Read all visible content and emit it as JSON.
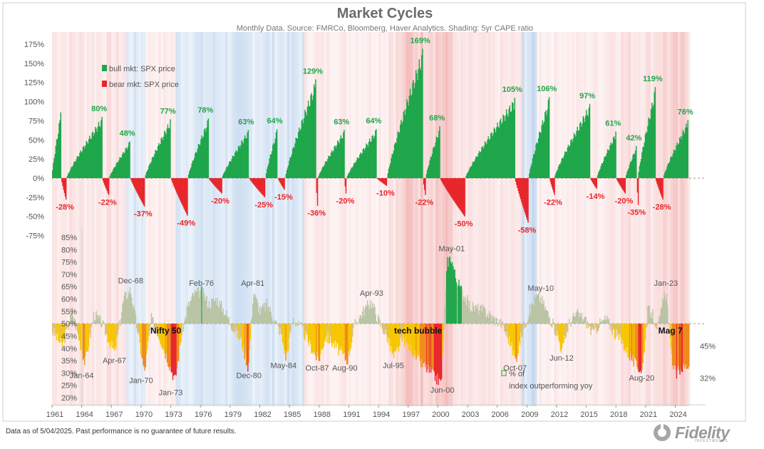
{
  "chart_data": {
    "type": "bar",
    "title": "Market Cycles",
    "subtitle": "Monthly Data.  Source:  FMRCo, Bloomberg, Haver Analytics.  Shading: 5yr CAPE ratio",
    "x_ticks": [
      "1961",
      "1964",
      "1967",
      "1970",
      "1973",
      "1976",
      "1979",
      "1982",
      "1985",
      "1988",
      "1991",
      "1994",
      "1997",
      "2000",
      "2003",
      "2006",
      "2009",
      "2012",
      "2015",
      "2018",
      "2021",
      "2024"
    ],
    "xlim": [
      1961,
      2025.4
    ],
    "top_panel": {
      "y_ticks": [
        "175%",
        "150%",
        "125%",
        "100%",
        "75%",
        "50%",
        "25%",
        "0%",
        "-25%",
        "-50%",
        "-75%"
      ],
      "ylim": [
        -75,
        175
      ],
      "legend": [
        {
          "name": "bull mkt: SPX price",
          "color": "#1fa64a"
        },
        {
          "name": "bear mkt: SPX price",
          "color": "#e8262b"
        }
      ],
      "bull_markets": [
        {
          "start": 1961.0,
          "end": 1961.9,
          "peak": 86,
          "label": ""
        },
        {
          "start": 1962.5,
          "end": 1966.05,
          "peak": 80,
          "label": "80%"
        },
        {
          "start": 1966.8,
          "end": 1968.9,
          "peak": 48,
          "label": "48%"
        },
        {
          "start": 1970.4,
          "end": 1973.0,
          "peak": 77,
          "label": "77%"
        },
        {
          "start": 1974.75,
          "end": 1976.8,
          "peak": 78,
          "label": "78%"
        },
        {
          "start": 1978.2,
          "end": 1980.9,
          "peak": 63,
          "label": "63%"
        },
        {
          "start": 1982.6,
          "end": 1983.8,
          "peak": 64,
          "label": "64%"
        },
        {
          "start": 1984.6,
          "end": 1987.65,
          "peak": 129,
          "label": "129%"
        },
        {
          "start": 1987.9,
          "end": 1990.55,
          "peak": 63,
          "label": "63%"
        },
        {
          "start": 1990.8,
          "end": 1993.8,
          "peak": 64,
          "label": "64%"
        },
        {
          "start": 1994.9,
          "end": 1998.5,
          "peak": 169,
          "label": "169%"
        },
        {
          "start": 1998.8,
          "end": 2000.2,
          "peak": 68,
          "label": "68%"
        },
        {
          "start": 2002.8,
          "end": 2007.8,
          "peak": 105,
          "label": "105%"
        },
        {
          "start": 2009.2,
          "end": 2011.3,
          "peak": 106,
          "label": "106%"
        },
        {
          "start": 2011.8,
          "end": 2015.4,
          "peak": 97,
          "label": "97%"
        },
        {
          "start": 2016.1,
          "end": 2018.0,
          "peak": 61,
          "label": "61%"
        },
        {
          "start": 2019.0,
          "end": 2020.1,
          "peak": 42,
          "label": "42%"
        },
        {
          "start": 2020.25,
          "end": 2022.0,
          "peak": 119,
          "label": "119%"
        },
        {
          "start": 2022.8,
          "end": 2025.3,
          "peak": 76,
          "label": "76%"
        }
      ],
      "bear_markets": [
        {
          "start": 1961.95,
          "end": 1962.45,
          "trough": -28,
          "label": "-28%"
        },
        {
          "start": 1966.1,
          "end": 1966.75,
          "trough": -22,
          "label": "-22%"
        },
        {
          "start": 1968.95,
          "end": 1970.35,
          "trough": -37,
          "label": "-37%"
        },
        {
          "start": 1973.05,
          "end": 1974.7,
          "trough": -49,
          "label": "-49%"
        },
        {
          "start": 1976.85,
          "end": 1978.15,
          "trough": -20,
          "label": "-20%"
        },
        {
          "start": 1980.95,
          "end": 1982.55,
          "trough": -25,
          "label": "-25%"
        },
        {
          "start": 1983.85,
          "end": 1984.55,
          "trough": -15,
          "label": "-15%"
        },
        {
          "start": 1987.7,
          "end": 1987.88,
          "trough": -36,
          "label": "-36%"
        },
        {
          "start": 1990.58,
          "end": 1990.78,
          "trough": -20,
          "label": "-20%"
        },
        {
          "start": 1993.85,
          "end": 1994.85,
          "trough": -10,
          "label": "-10%"
        },
        {
          "start": 1998.52,
          "end": 1998.78,
          "trough": -22,
          "label": "-22%"
        },
        {
          "start": 2000.25,
          "end": 2002.75,
          "trough": -50,
          "label": "-50%"
        },
        {
          "start": 2007.82,
          "end": 2009.15,
          "trough": -58,
          "label": "-58%"
        },
        {
          "start": 2011.32,
          "end": 2011.78,
          "trough": -22,
          "label": "-22%"
        },
        {
          "start": 2015.42,
          "end": 2016.08,
          "trough": -14,
          "label": "-14%"
        },
        {
          "start": 2018.05,
          "end": 2018.95,
          "trough": -20,
          "label": "-20%"
        },
        {
          "start": 2020.12,
          "end": 2020.23,
          "trough": -35,
          "label": "-35%"
        },
        {
          "start": 2022.02,
          "end": 2022.78,
          "trough": -28,
          "label": "-28%"
        }
      ]
    },
    "bottom_panel": {
      "y_ticks": [
        "85%",
        "80%",
        "75%",
        "70%",
        "65%",
        "60%",
        "55%",
        "50%",
        "45%",
        "40%",
        "35%",
        "30%",
        "25%",
        "20%"
      ],
      "ylim": [
        20,
        85
      ],
      "baseline": 50,
      "legend": [
        {
          "name": "% of index outperforming yoy",
          "color": "#2ca02c"
        }
      ],
      "series_points": [
        [
          1961.0,
          47
        ],
        [
          1962.0,
          41
        ],
        [
          1963.0,
          55
        ],
        [
          1964.3,
          34
        ],
        [
          1965.2,
          54
        ],
        [
          1966.0,
          50
        ],
        [
          1967.3,
          38
        ],
        [
          1968.2,
          60
        ],
        [
          1968.9,
          64
        ],
        [
          1969.6,
          47
        ],
        [
          1970.3,
          30
        ],
        [
          1971.0,
          52
        ],
        [
          1971.8,
          45
        ],
        [
          1972.6,
          36
        ],
        [
          1973.4,
          27
        ],
        [
          1974.0,
          44
        ],
        [
          1974.6,
          56
        ],
        [
          1975.3,
          62
        ],
        [
          1976.1,
          63
        ],
        [
          1976.8,
          58
        ],
        [
          1977.6,
          60
        ],
        [
          1978.4,
          55
        ],
        [
          1979.2,
          49
        ],
        [
          1980.1,
          43
        ],
        [
          1980.8,
          32
        ],
        [
          1981.3,
          63
        ],
        [
          1982.0,
          55
        ],
        [
          1982.7,
          58
        ],
        [
          1983.4,
          52
        ],
        [
          1984.1,
          46
        ],
        [
          1984.6,
          36
        ],
        [
          1985.3,
          52
        ],
        [
          1986.2,
          48
        ],
        [
          1987.2,
          40
        ],
        [
          1987.9,
          35
        ],
        [
          1988.6,
          45
        ],
        [
          1989.4,
          42
        ],
        [
          1990.2,
          38
        ],
        [
          1990.8,
          35
        ],
        [
          1991.6,
          50
        ],
        [
          1992.4,
          55
        ],
        [
          1993.2,
          59
        ],
        [
          1994.0,
          51
        ],
        [
          1994.8,
          45
        ],
        [
          1995.5,
          36
        ],
        [
          1996.4,
          44
        ],
        [
          1997.2,
          40
        ],
        [
          1998.0,
          35
        ],
        [
          1998.8,
          32
        ],
        [
          1999.5,
          29
        ],
        [
          2000.3,
          26
        ],
        [
          2000.9,
          75
        ],
        [
          2001.3,
          77
        ],
        [
          2001.8,
          68
        ],
        [
          2002.4,
          63
        ],
        [
          2003.2,
          57
        ],
        [
          2004.0,
          56
        ],
        [
          2004.8,
          55
        ],
        [
          2005.6,
          52
        ],
        [
          2006.4,
          50
        ],
        [
          2007.3,
          42
        ],
        [
          2007.8,
          35
        ],
        [
          2008.5,
          47
        ],
        [
          2009.2,
          55
        ],
        [
          2009.9,
          61
        ],
        [
          2010.4,
          60
        ],
        [
          2011.2,
          53
        ],
        [
          2012.0,
          46
        ],
        [
          2012.5,
          39
        ],
        [
          2013.2,
          50
        ],
        [
          2014.0,
          54
        ],
        [
          2014.8,
          52
        ],
        [
          2015.6,
          46
        ],
        [
          2016.3,
          50
        ],
        [
          2017.0,
          52
        ],
        [
          2017.8,
          46
        ],
        [
          2018.5,
          43
        ],
        [
          2019.2,
          38
        ],
        [
          2020.0,
          33
        ],
        [
          2020.6,
          31
        ],
        [
          2021.2,
          56
        ],
        [
          2021.6,
          54
        ],
        [
          2022.2,
          48
        ],
        [
          2022.9,
          63
        ],
        [
          2023.1,
          61
        ],
        [
          2023.5,
          38
        ],
        [
          2024.0,
          29
        ],
        [
          2024.5,
          32
        ],
        [
          2025.2,
          33
        ]
      ],
      "annotations": [
        {
          "text": "Dec-68",
          "x": 1968.95,
          "y": 64
        },
        {
          "text": "Apr-67",
          "x": 1967.3,
          "y": 38
        },
        {
          "text": "Jan-64",
          "x": 1964.0,
          "y": 32
        },
        {
          "text": "Jan-70",
          "x": 1970.0,
          "y": 30
        },
        {
          "text": "Jan-73",
          "x": 1973.0,
          "y": 25
        },
        {
          "text": "Feb-76",
          "x": 1976.1,
          "y": 63
        },
        {
          "text": "Dec-80",
          "x": 1980.9,
          "y": 32
        },
        {
          "text": "Apr-81",
          "x": 1981.3,
          "y": 63
        },
        {
          "text": "May-84",
          "x": 1984.4,
          "y": 36
        },
        {
          "text": "Oct-87",
          "x": 1987.8,
          "y": 35
        },
        {
          "text": "Aug-90",
          "x": 1990.6,
          "y": 35
        },
        {
          "text": "Apr-93",
          "x": 1993.3,
          "y": 59
        },
        {
          "text": "Jul-95",
          "x": 1995.5,
          "y": 36
        },
        {
          "text": "May-01",
          "x": 2001.4,
          "y": 77
        },
        {
          "text": "Jun-00",
          "x": 2000.45,
          "y": 26
        },
        {
          "text": "Oct-07",
          "x": 2007.8,
          "y": 35
        },
        {
          "text": "May-10",
          "x": 2010.4,
          "y": 61
        },
        {
          "text": "Jun-12",
          "x": 2012.5,
          "y": 39
        },
        {
          "text": "Aug-20",
          "x": 2020.6,
          "y": 31
        },
        {
          "text": "Jan-23",
          "x": 2023.05,
          "y": 63
        }
      ],
      "highlights": [
        {
          "text": "Nifty 50",
          "x": 1972.5,
          "y": 46
        },
        {
          "text": "tech bubble",
          "x": 1998.0,
          "y": 46
        },
        {
          "text": "Mag 7",
          "x": 2023.5,
          "y": 46
        }
      ],
      "right_labels": [
        {
          "text": "45%",
          "y": 41
        },
        {
          "text": "32%",
          "y": 28
        }
      ]
    },
    "shading": {
      "label": "5yr CAPE ratio",
      "bands": [
        {
          "start": 1961.0,
          "end": 1968.5,
          "tone": "warm",
          "strength": 0.35
        },
        {
          "start": 1968.5,
          "end": 1970.5,
          "tone": "cool",
          "strength": 0.35
        },
        {
          "start": 1970.5,
          "end": 1973.5,
          "tone": "warm",
          "strength": 0.25
        },
        {
          "start": 1973.5,
          "end": 1986.5,
          "tone": "cool",
          "strength": 0.4
        },
        {
          "start": 1986.5,
          "end": 1995.0,
          "tone": "warm",
          "strength": 0.28
        },
        {
          "start": 1995.0,
          "end": 1996.5,
          "tone": "warm",
          "strength": 0.45
        },
        {
          "start": 1996.5,
          "end": 2001.3,
          "tone": "warm",
          "strength": 0.75
        },
        {
          "start": 2001.3,
          "end": 2008.5,
          "tone": "warm",
          "strength": 0.3
        },
        {
          "start": 2008.5,
          "end": 2010.0,
          "tone": "cool",
          "strength": 0.5
        },
        {
          "start": 2010.0,
          "end": 2017.0,
          "tone": "warm",
          "strength": 0.25
        },
        {
          "start": 2017.0,
          "end": 2022.0,
          "tone": "warm",
          "strength": 0.4
        },
        {
          "start": 2022.0,
          "end": 2025.4,
          "tone": "warm",
          "strength": 0.55
        }
      ]
    }
  },
  "footer": {
    "note": "Data as of 5/04/2025. Past performance is no guarantee of future results.",
    "logo": "Fidelity",
    "logo_sub": "INVESTMENTS"
  },
  "colors": {
    "bull": "#1fa64a",
    "bear": "#e8262b",
    "bull_label": "#1fa64a",
    "bear_label": "#e8262b",
    "warm_shade": "#f4b6b6",
    "cool_shade": "#a9c6e8",
    "breadth_low": "#e8262b",
    "breadth_mid": "#f7c600",
    "breadth_high": "#1fa64a",
    "neutral": "#b5b5b5"
  }
}
